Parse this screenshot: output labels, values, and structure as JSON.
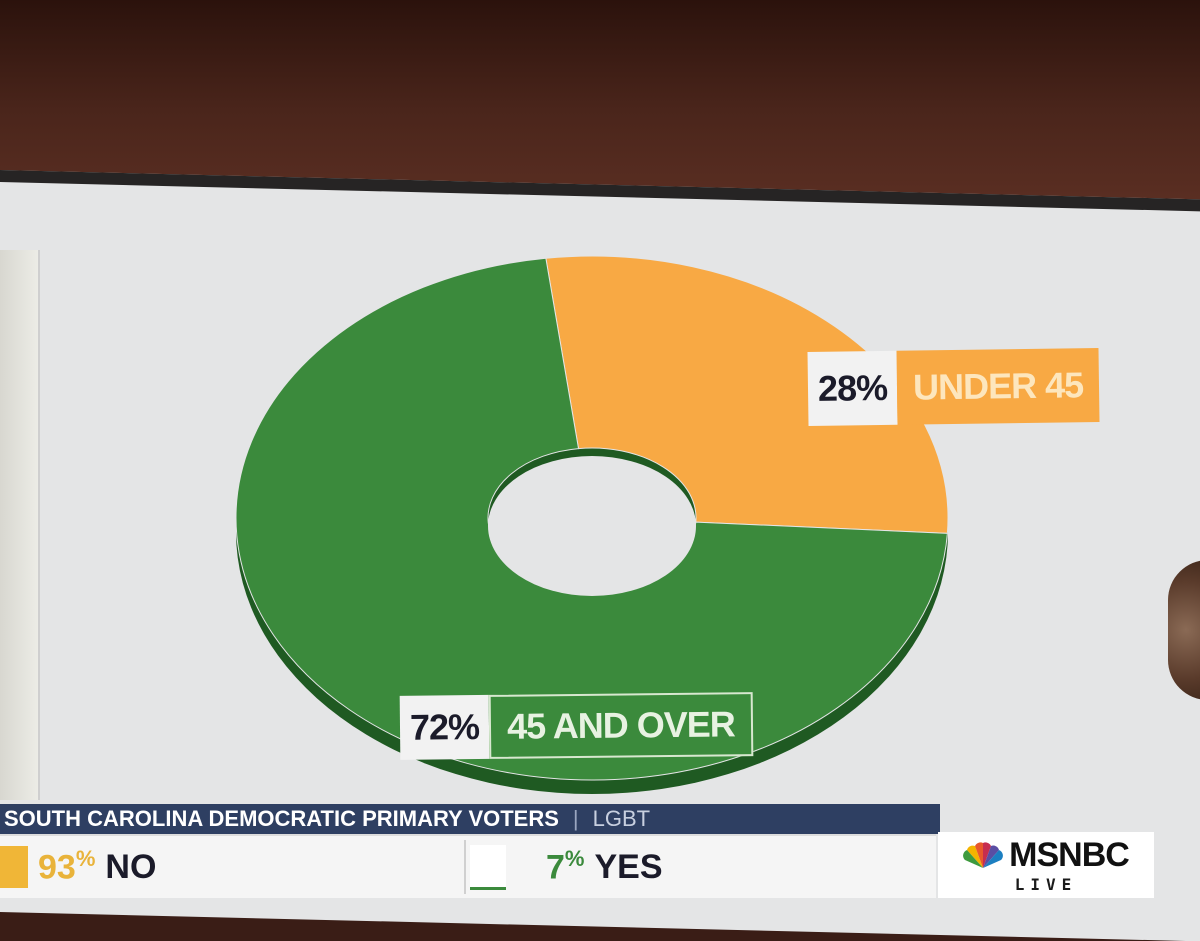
{
  "chart_data": {
    "type": "pie",
    "variant": "donut",
    "slices": [
      {
        "label": "UNDER 45",
        "percent_label": "28%",
        "value": 28,
        "color": "#f8a944"
      },
      {
        "label": "45 AND OVER",
        "percent_label": "72%",
        "value": 72,
        "color": "#3b8a3c"
      }
    ]
  },
  "ticker": {
    "headline": "SOUTH CAROLINA DEMOCRATIC PRIMARY VOTERS",
    "separator": "|",
    "topic": "LGBT",
    "items": [
      {
        "value": "93",
        "unit": "%",
        "answer": "NO",
        "color": "#f0b637"
      },
      {
        "value": "7",
        "unit": "%",
        "answer": "YES",
        "color": "#3b8a3c"
      }
    ]
  },
  "logo": {
    "name": "MSNBC",
    "sub": "LIVE"
  }
}
